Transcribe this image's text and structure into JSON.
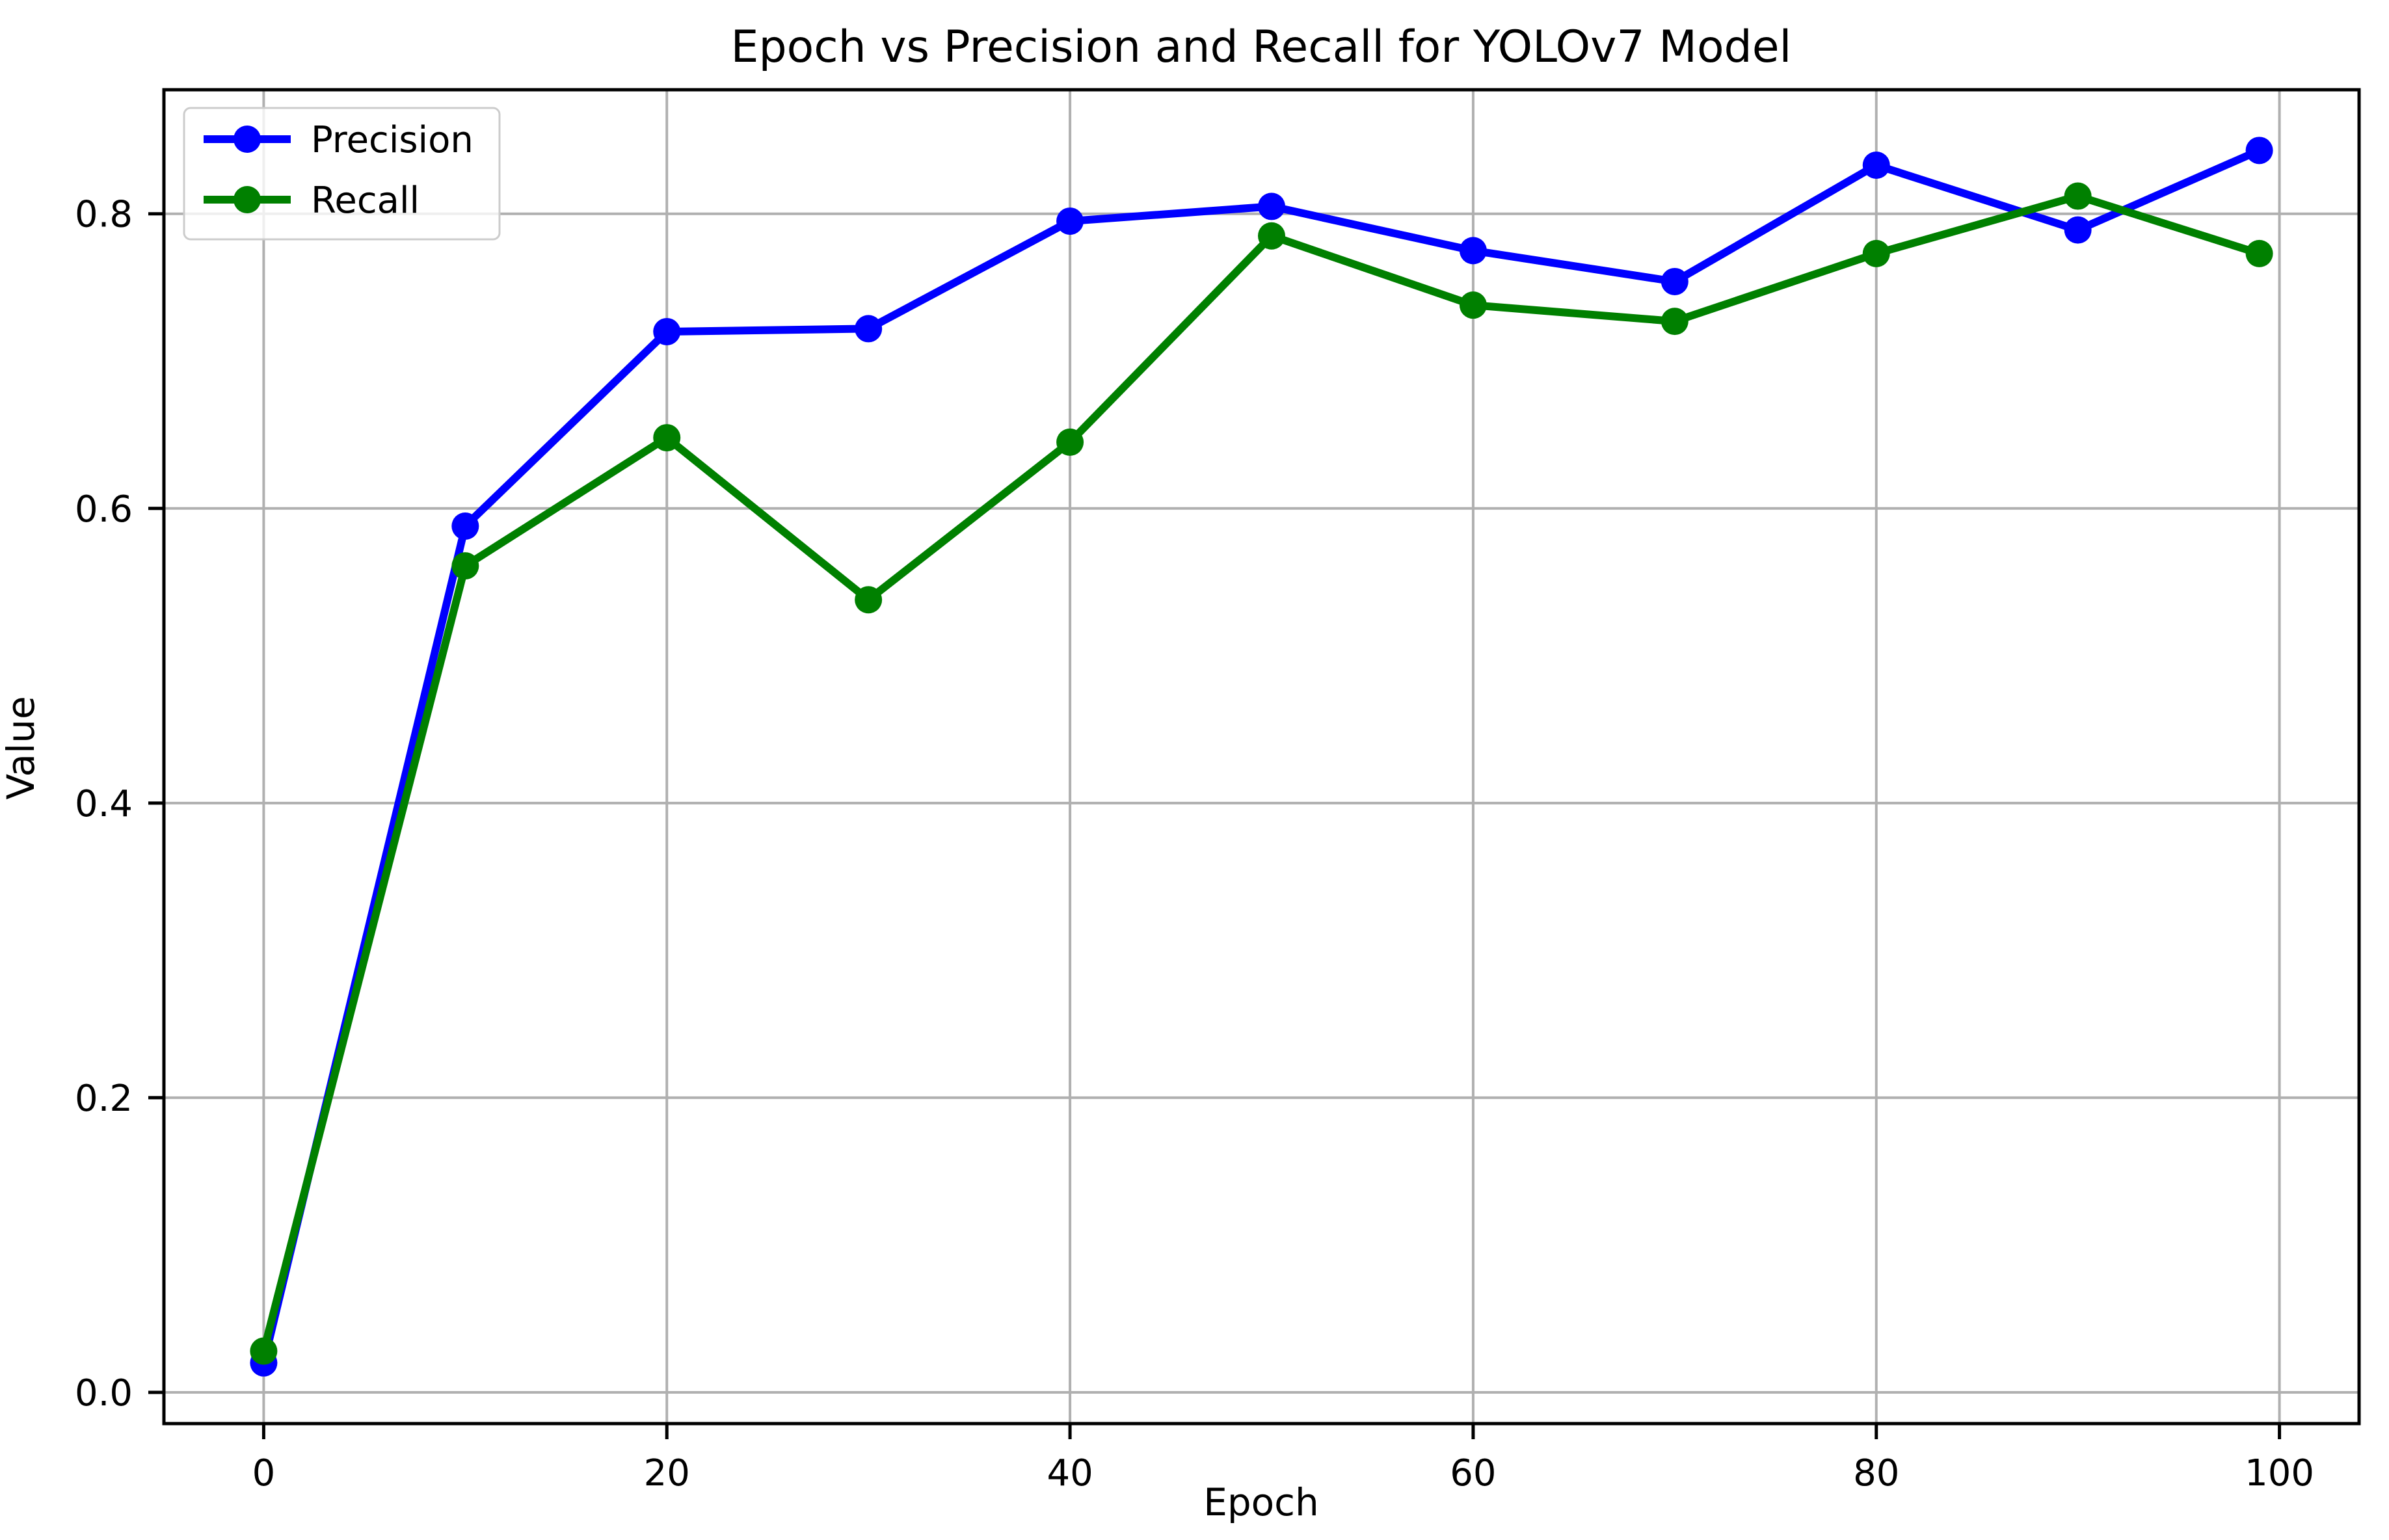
{
  "figure": {
    "background": "#ffffff"
  },
  "chart_data": {
    "type": "line",
    "title": "Epoch vs Precision and Recall for YOLOv7 Model",
    "xlabel": "Epoch",
    "ylabel": "Value",
    "x": [
      0,
      10,
      20,
      30,
      40,
      50,
      60,
      70,
      80,
      90,
      99
    ],
    "series": [
      {
        "name": "Precision",
        "color": "#0000ff",
        "values": [
          0.02,
          0.588,
          0.72,
          0.722,
          0.795,
          0.805,
          0.775,
          0.754,
          0.833,
          0.789,
          0.843
        ]
      },
      {
        "name": "Recall",
        "color": "#008000",
        "values": [
          0.028,
          0.561,
          0.648,
          0.538,
          0.645,
          0.785,
          0.738,
          0.727,
          0.773,
          0.812,
          0.773
        ]
      }
    ],
    "xlim": [
      -4.95,
      103.95
    ],
    "ylim": [
      -0.0212,
      0.8842
    ],
    "xticks": [
      0,
      20,
      40,
      60,
      80,
      100
    ],
    "xtick_labels": [
      "0",
      "20",
      "40",
      "60",
      "80",
      "100"
    ],
    "yticks": [
      0.0,
      0.2,
      0.4,
      0.6,
      0.8
    ],
    "ytick_labels": [
      "0.0",
      "0.2",
      "0.4",
      "0.6",
      "0.8"
    ],
    "grid": true,
    "legend_position": "upper left"
  },
  "style": {
    "grid_color": "#b0b0b0",
    "spine_color": "#000000",
    "tick_color": "#000000",
    "legend_border_color": "#cccccc",
    "legend_fill": "rgba(255,255,255,0.8)"
  }
}
